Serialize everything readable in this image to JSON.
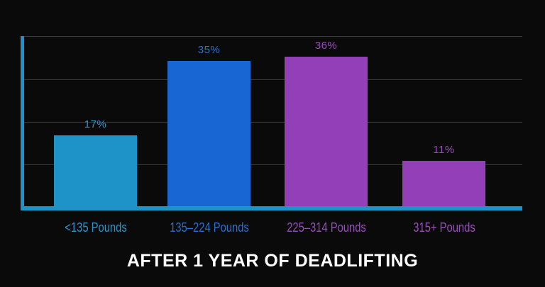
{
  "chart_data": {
    "type": "bar",
    "title": "AFTER 1 YEAR OF DEADLIFTING",
    "xlabel": "",
    "ylabel": "",
    "ylim": [
      0,
      40
    ],
    "grid": true,
    "legend": "none",
    "categories": [
      "<135 Pounds",
      "135-224 Pounds",
      "225-314 Pounds",
      "315+ Pounds"
    ],
    "values": [
      17,
      35,
      36,
      11
    ],
    "value_labels": [
      "17%",
      "35%",
      "36%",
      "11%"
    ],
    "colors": [
      "#1e93c8",
      "#1766d3",
      "#9340b8",
      "#9340b8"
    ],
    "label_colors": [
      "#2b95cc",
      "#2a6fd0",
      "#9a4dbd",
      "#9a4dbd"
    ]
  },
  "theme": {
    "background": "#0b0a0b",
    "axis_color": "#1e93c8",
    "grid_color": "#3a3a3c",
    "title_color": "#ffffff"
  }
}
